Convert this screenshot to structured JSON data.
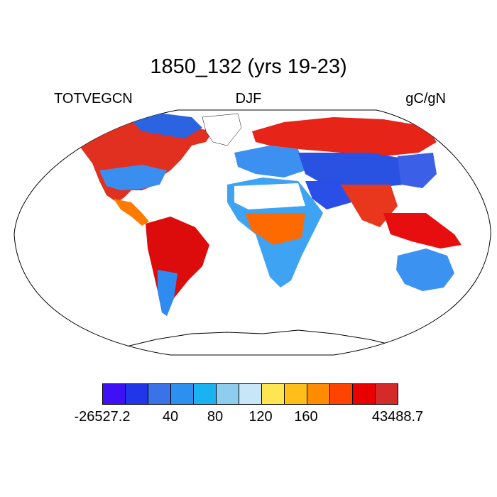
{
  "title": "1850_132 (yrs 19-23)",
  "subtitle_left": "TOTVEGCN",
  "subtitle_center": "DJF",
  "subtitle_right": "gC/gN",
  "colorbar": {
    "colors": [
      "#3f10f5",
      "#2036e8",
      "#3a72e8",
      "#2b90f0",
      "#1ab2f0",
      "#8ecdee",
      "#c8e6f7",
      "#ffe552",
      "#ffbe1a",
      "#ff8c00",
      "#ff4400",
      "#e80000",
      "#d42a2a"
    ],
    "labels": [
      "-26527.2",
      "40",
      "80",
      "120",
      "160",
      "43488.7"
    ]
  }
}
